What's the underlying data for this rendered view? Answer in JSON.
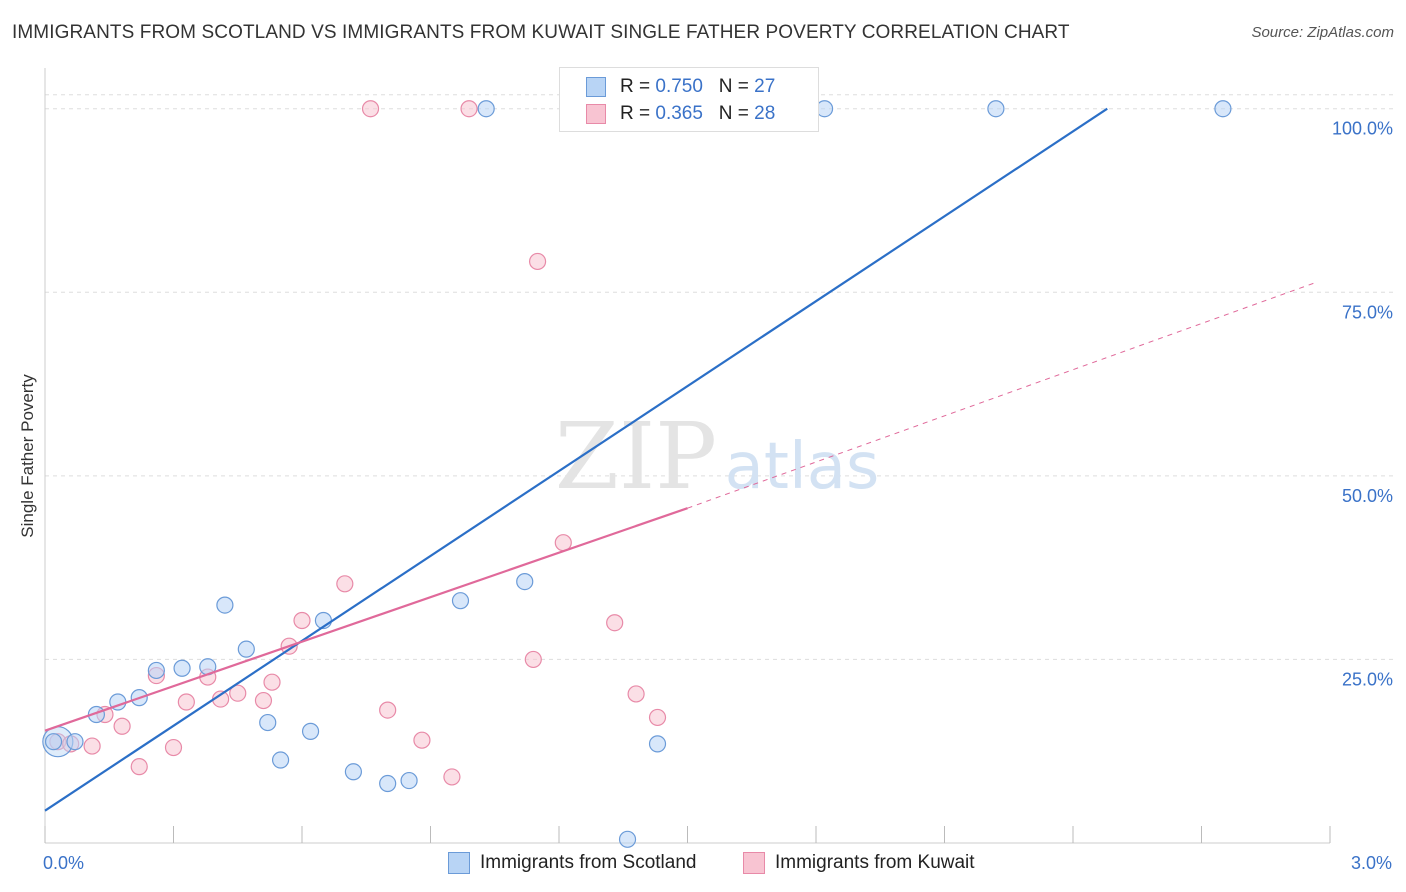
{
  "title": "IMMIGRANTS FROM SCOTLAND VS IMMIGRANTS FROM KUWAIT SINGLE FATHER POVERTY CORRELATION CHART",
  "source": "Source: ZipAtlas.com",
  "watermark": {
    "zip": "ZIP",
    "atlas": "atlas"
  },
  "legend": {
    "scotland": {
      "r_label": "R =",
      "r_value": "0.750",
      "n_label": "N =",
      "n_value": "27"
    },
    "kuwait": {
      "r_label": "R =",
      "r_value": "0.365",
      "n_label": "N =",
      "n_value": "28"
    }
  },
  "bottom_legend": {
    "scotland": "Immigrants from Scotland",
    "kuwait": "Immigrants from Kuwait"
  },
  "colors": {
    "scotland_fill": "#b8d4f5",
    "scotland_stroke": "#6b9bd8",
    "scotland_line": "#2b6fc7",
    "kuwait_fill": "#f8c4d2",
    "kuwait_stroke": "#e88aa8",
    "kuwait_line": "#e0699a",
    "tick_label": "#3a72c8",
    "grid": "#dddddd"
  },
  "chart_data": {
    "type": "scatter",
    "xlabel": "",
    "ylabel": "Single Father Poverty",
    "xlim": [
      0,
      3
    ],
    "ylim": [
      0,
      105
    ],
    "x_tick_labels": [
      {
        "value": 0,
        "label": "0.0%"
      },
      {
        "value": 3,
        "label": "3.0%"
      }
    ],
    "y_tick_labels": [
      {
        "value": 25,
        "label": "25.0%"
      },
      {
        "value": 50,
        "label": "50.0%"
      },
      {
        "value": 75,
        "label": "75.0%"
      },
      {
        "value": 100,
        "label": "100.0%"
      }
    ],
    "grid": true,
    "series": [
      {
        "name": "Immigrants from Scotland",
        "points": [
          [
            0.02,
            13.8
          ],
          [
            0.07,
            13.8
          ],
          [
            0.12,
            17.5
          ],
          [
            0.17,
            19.2
          ],
          [
            0.22,
            19.8
          ],
          [
            0.26,
            23.5
          ],
          [
            0.32,
            23.8
          ],
          [
            0.38,
            24.0
          ],
          [
            0.42,
            32.4
          ],
          [
            0.47,
            26.4
          ],
          [
            0.52,
            16.4
          ],
          [
            0.55,
            11.3
          ],
          [
            0.62,
            15.2
          ],
          [
            0.65,
            30.3
          ],
          [
            0.72,
            9.7
          ],
          [
            0.8,
            8.1
          ],
          [
            0.85,
            8.5
          ],
          [
            0.97,
            33.0
          ],
          [
            1.03,
            100
          ],
          [
            1.12,
            35.6
          ],
          [
            1.36,
            0.5
          ],
          [
            1.43,
            13.5
          ],
          [
            1.57,
            100
          ],
          [
            1.63,
            100
          ],
          [
            1.82,
            100
          ],
          [
            2.22,
            100
          ],
          [
            2.75,
            100
          ]
        ],
        "trend": {
          "x": [
            0,
            2.48
          ],
          "y": [
            4.4,
            100
          ]
        }
      },
      {
        "name": "Immigrants from Kuwait",
        "points": [
          [
            0.03,
            13.8
          ],
          [
            0.06,
            13.5
          ],
          [
            0.11,
            13.2
          ],
          [
            0.14,
            17.5
          ],
          [
            0.18,
            15.9
          ],
          [
            0.22,
            10.4
          ],
          [
            0.26,
            22.8
          ],
          [
            0.3,
            13.0
          ],
          [
            0.33,
            19.2
          ],
          [
            0.38,
            22.6
          ],
          [
            0.41,
            19.6
          ],
          [
            0.45,
            20.4
          ],
          [
            0.51,
            19.4
          ],
          [
            0.53,
            21.9
          ],
          [
            0.57,
            26.8
          ],
          [
            0.6,
            30.3
          ],
          [
            0.7,
            35.3
          ],
          [
            0.76,
            100
          ],
          [
            0.8,
            18.1
          ],
          [
            0.88,
            14.0
          ],
          [
            0.95,
            9.0
          ],
          [
            0.99,
            100
          ],
          [
            1.14,
            25.0
          ],
          [
            1.15,
            79.2
          ],
          [
            1.21,
            40.9
          ],
          [
            1.33,
            30.0
          ],
          [
            1.38,
            20.3
          ],
          [
            1.43,
            17.1
          ]
        ],
        "trend": {
          "x": [
            0,
            1.5
          ],
          "y": [
            15.3,
            45.6
          ]
        },
        "trend_extension": {
          "x": [
            1.5,
            2.97
          ],
          "y": [
            45.6,
            76.4
          ]
        }
      }
    ]
  }
}
